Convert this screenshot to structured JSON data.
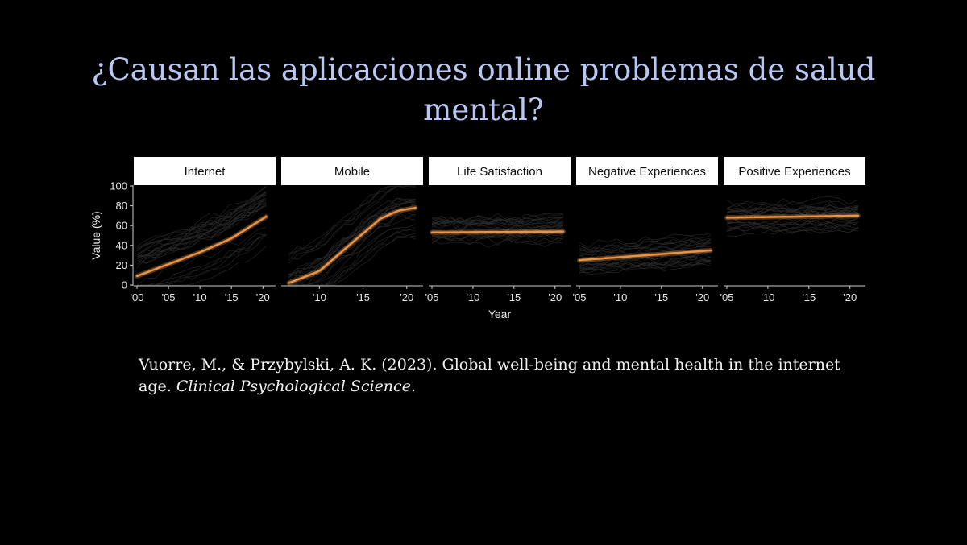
{
  "slide": {
    "title": "¿Causan las aplicaciones online problemas de salud mental?",
    "citation_authors": "Vuorre, M., & Przybylski, A. K. (2023). Global well-being and mental health in the internet age.",
    "citation_journal": "Clinical Psychological Science",
    "citation_end": "."
  },
  "chart_data": {
    "type": "line",
    "ylabel": "Value (%)",
    "xlabel": "Year",
    "ylim": [
      0,
      100
    ],
    "yticks": [
      "0",
      "20",
      "40",
      "60",
      "80",
      "100"
    ],
    "colors": {
      "trend": "#e8954a",
      "background_lines": "#ffffff",
      "strip": "#ffffff",
      "axis": "#cccccc"
    },
    "panels": [
      {
        "name": "Internet",
        "xlim": [
          2000,
          2021.5
        ],
        "xticks": [
          2000,
          2005,
          2010,
          2015,
          2020
        ],
        "xtick_labels": [
          "'00",
          "'05",
          "'10",
          "'15",
          "'20"
        ],
        "x": [
          2000,
          2005,
          2010,
          2015,
          2020.5
        ],
        "y": [
          9,
          21,
          33,
          47,
          69
        ]
      },
      {
        "name": "Mobile",
        "xlim": [
          2006,
          2021.5
        ],
        "xticks": [
          2010,
          2015,
          2020
        ],
        "xtick_labels": [
          "'10",
          "'15",
          "'20"
        ],
        "x": [
          2006.5,
          2010,
          2013,
          2015,
          2017,
          2019,
          2021
        ],
        "y": [
          2,
          14,
          37,
          52,
          67,
          75,
          78
        ]
      },
      {
        "name": "Life Satisfaction",
        "xlim": [
          2005,
          2021.5
        ],
        "xticks": [
          2005,
          2010,
          2015,
          2020
        ],
        "xtick_labels": [
          "'05",
          "'10",
          "'15",
          "'20"
        ],
        "x": [
          2005,
          2021
        ],
        "y": [
          53,
          54
        ]
      },
      {
        "name": "Negative Experiences",
        "xlim": [
          2005,
          2021.5
        ],
        "xticks": [
          2005,
          2010,
          2015,
          2020
        ],
        "xtick_labels": [
          "'05",
          "'10",
          "'15",
          "'20"
        ],
        "x": [
          2005,
          2021
        ],
        "y": [
          25,
          35
        ]
      },
      {
        "name": "Positive Experiences",
        "xlim": [
          2005,
          2021.5
        ],
        "xticks": [
          2005,
          2010,
          2015,
          2020
        ],
        "xtick_labels": [
          "'05",
          "'10",
          "'15",
          "'20"
        ],
        "x": [
          2005,
          2021
        ],
        "y": [
          68,
          70
        ]
      }
    ]
  }
}
